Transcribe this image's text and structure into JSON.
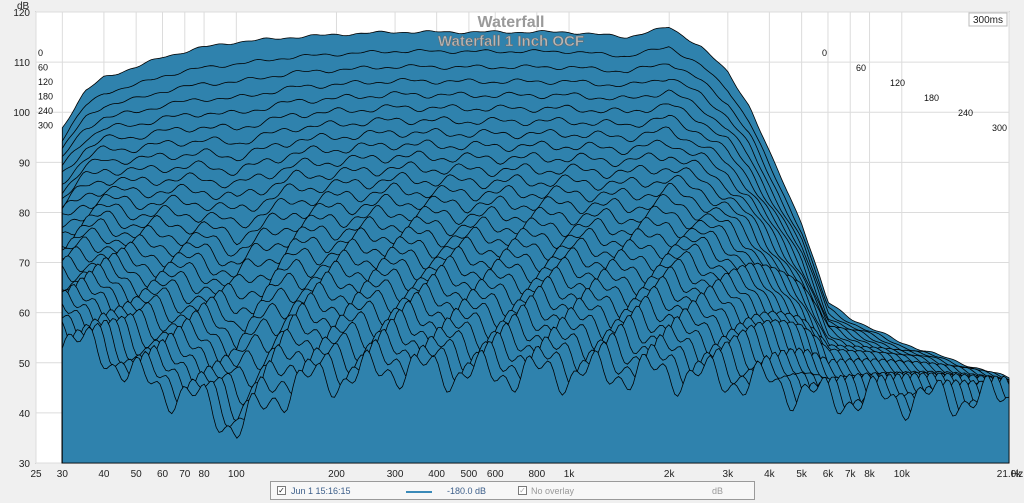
{
  "chart_data": {
    "type": "area",
    "title": "Waterfall",
    "subtitle": "Waterfall 1 Inch OCF",
    "ylabel": "dB",
    "xlabel": "Hz",
    "ylim": [
      30,
      120
    ],
    "xlim": [
      25,
      21000
    ],
    "x_scale": "log",
    "yticks": [
      "30",
      "40",
      "50",
      "60",
      "70",
      "80",
      "90",
      "100",
      "110",
      "120"
    ],
    "xticks": [
      {
        "value": 25,
        "label": "25"
      },
      {
        "value": 30,
        "label": "30"
      },
      {
        "value": 40,
        "label": "40"
      },
      {
        "value": 50,
        "label": "50"
      },
      {
        "value": 60,
        "label": "60"
      },
      {
        "value": 70,
        "label": "70"
      },
      {
        "value": 80,
        "label": "80"
      },
      {
        "value": 100,
        "label": "100"
      },
      {
        "value": 200,
        "label": "200"
      },
      {
        "value": 300,
        "label": "300"
      },
      {
        "value": 400,
        "label": "400"
      },
      {
        "value": 500,
        "label": "500"
      },
      {
        "value": 600,
        "label": "600"
      },
      {
        "value": 800,
        "label": "800"
      },
      {
        "value": 1000,
        "label": "1k"
      },
      {
        "value": 2000,
        "label": "2k"
      },
      {
        "value": 3000,
        "label": "3k"
      },
      {
        "value": 4000,
        "label": "4k"
      },
      {
        "value": 5000,
        "label": "5k"
      },
      {
        "value": 6000,
        "label": "6k"
      },
      {
        "value": 7000,
        "label": "7k"
      },
      {
        "value": 8000,
        "label": "8k"
      },
      {
        "value": 10000,
        "label": "10k"
      },
      {
        "value": 21000,
        "label": "21.0k"
      }
    ],
    "time_axis_label": "300ms",
    "time_labels": [
      "0",
      "60",
      "120",
      "180",
      "240",
      "300"
    ],
    "fill_color": "#2f82ad",
    "line_color": "#000000",
    "slices": 30,
    "front_curve": [
      [
        30,
        97
      ],
      [
        35,
        104
      ],
      [
        40,
        107
      ],
      [
        50,
        109
      ],
      [
        60,
        111
      ],
      [
        80,
        113
      ],
      [
        100,
        114
      ],
      [
        150,
        115
      ],
      [
        200,
        115.5
      ],
      [
        300,
        116
      ],
      [
        500,
        116
      ],
      [
        800,
        116
      ],
      [
        1000,
        116
      ],
      [
        1500,
        115
      ],
      [
        2000,
        117
      ],
      [
        2500,
        113
      ],
      [
        3000,
        108
      ],
      [
        3500,
        101
      ],
      [
        4000,
        92
      ],
      [
        5000,
        78
      ],
      [
        6000,
        62
      ],
      [
        7000,
        59
      ],
      [
        8000,
        57
      ],
      [
        10000,
        54
      ],
      [
        15000,
        50
      ],
      [
        21000,
        47
      ]
    ],
    "floor_curve": [
      [
        30,
        55
      ],
      [
        40,
        52
      ],
      [
        50,
        47
      ],
      [
        60,
        45
      ],
      [
        80,
        42
      ],
      [
        100,
        37
      ],
      [
        150,
        46
      ],
      [
        200,
        47
      ],
      [
        300,
        49
      ],
      [
        500,
        48
      ],
      [
        800,
        48
      ],
      [
        1000,
        48
      ],
      [
        2000,
        48
      ],
      [
        4000,
        46
      ],
      [
        6000,
        43
      ],
      [
        10000,
        43
      ],
      [
        21000,
        43
      ]
    ]
  },
  "footer": {
    "date": "Jun 1 15:16:15",
    "value": "-180.0 dB",
    "overlay": "No overlay",
    "unit": "dB",
    "line_color": "#3a8ab8"
  }
}
